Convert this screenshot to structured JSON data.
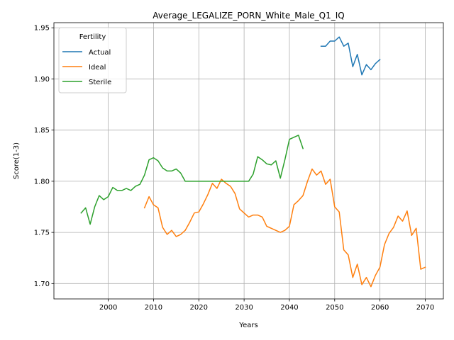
{
  "chart_data": {
    "type": "line",
    "title": "Average_LEGALIZE_PORN_White_Male_Q1_IQ",
    "xlabel": "Years",
    "ylabel": "Score(1-3)",
    "xlim": [
      1988,
      2074
    ],
    "ylim": [
      1.685,
      1.955
    ],
    "xticks": [
      2000,
      2010,
      2020,
      2030,
      2040,
      2050,
      2060,
      2070
    ],
    "yticks": [
      1.7,
      1.75,
      1.8,
      1.85,
      1.9,
      1.95
    ],
    "grid": true,
    "legend": {
      "title": "Fertility",
      "position": "top-left"
    },
    "series": [
      {
        "name": "Actual",
        "color": "#1f77b4",
        "x": [
          2047,
          2048,
          2049,
          2050,
          2051,
          2052,
          2053,
          2054,
          2055,
          2056,
          2057,
          2058,
          2059,
          2060
        ],
        "y": [
          1.932,
          1.932,
          1.937,
          1.937,
          1.941,
          1.932,
          1.935,
          1.912,
          1.924,
          1.904,
          1.914,
          1.909,
          1.915,
          1.919
        ]
      },
      {
        "name": "Ideal",
        "color": "#ff7f0e",
        "x": [
          2008,
          2009,
          2010,
          2011,
          2012,
          2013,
          2014,
          2015,
          2016,
          2017,
          2018,
          2019,
          2020,
          2021,
          2022,
          2023,
          2024,
          2025,
          2026,
          2027,
          2028,
          2029,
          2030,
          2031,
          2032,
          2033,
          2034,
          2035,
          2036,
          2037,
          2038,
          2039,
          2040,
          2041,
          2042,
          2043,
          2044,
          2045,
          2046,
          2047,
          2048,
          2049,
          2050,
          2051,
          2052,
          2053,
          2054,
          2055,
          2056,
          2057,
          2058,
          2059,
          2060,
          2061,
          2062,
          2063,
          2064,
          2065,
          2066,
          2067,
          2068,
          2069,
          2070
        ],
        "y": [
          1.774,
          1.785,
          1.777,
          1.774,
          1.755,
          1.748,
          1.752,
          1.746,
          1.748,
          1.752,
          1.76,
          1.769,
          1.77,
          1.778,
          1.787,
          1.798,
          1.793,
          1.802,
          1.798,
          1.795,
          1.788,
          1.773,
          1.769,
          1.765,
          1.767,
          1.767,
          1.765,
          1.756,
          1.754,
          1.752,
          1.75,
          1.752,
          1.756,
          1.777,
          1.781,
          1.786,
          1.8,
          1.812,
          1.806,
          1.81,
          1.797,
          1.802,
          1.775,
          1.77,
          1.733,
          1.728,
          1.706,
          1.719,
          1.699,
          1.706,
          1.697,
          1.708,
          1.716,
          1.738,
          1.749,
          1.755,
          1.766,
          1.761,
          1.771,
          1.747,
          1.754,
          1.714,
          1.716
        ]
      },
      {
        "name": "Sterile",
        "color": "#2ca02c",
        "x": [
          1994,
          1995,
          1996,
          1997,
          1998,
          1999,
          2000,
          2001,
          2002,
          2003,
          2004,
          2005,
          2006,
          2007,
          2008,
          2009,
          2010,
          2011,
          2012,
          2013,
          2014,
          2015,
          2016,
          2017,
          2018,
          2019,
          2020,
          2021,
          2022,
          2023,
          2024,
          2025,
          2026,
          2027,
          2028,
          2029,
          2030,
          2031,
          2032,
          2033,
          2034,
          2035,
          2036,
          2037,
          2038,
          2039,
          2040,
          2041,
          2042,
          2043
        ],
        "y": [
          1.769,
          1.774,
          1.758,
          1.775,
          1.786,
          1.782,
          1.785,
          1.794,
          1.791,
          1.791,
          1.793,
          1.791,
          1.795,
          1.797,
          1.806,
          1.821,
          1.823,
          1.82,
          1.813,
          1.81,
          1.81,
          1.812,
          1.808,
          1.8,
          1.8,
          1.8,
          1.8,
          1.8,
          1.8,
          1.8,
          1.8,
          1.8,
          1.8,
          1.8,
          1.8,
          1.8,
          1.8,
          1.8,
          1.807,
          1.824,
          1.821,
          1.817,
          1.816,
          1.82,
          1.803,
          1.821,
          1.841,
          1.843,
          1.845,
          1.832
        ]
      }
    ]
  }
}
